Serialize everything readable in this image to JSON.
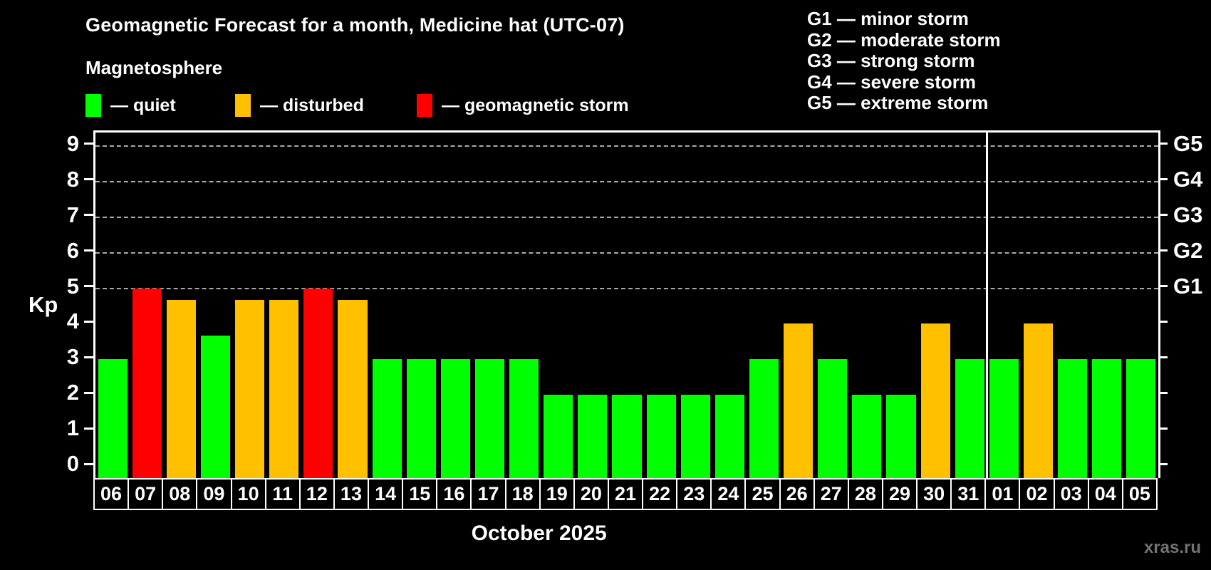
{
  "header": {
    "title": "Geomagnetic Forecast for a month, Medicine hat (UTC-07)",
    "subtitle": "Magnetosphere"
  },
  "status_legend": [
    {
      "key": "quiet",
      "label": "— quiet",
      "color": "#00ff00"
    },
    {
      "key": "disturbed",
      "label": "— disturbed",
      "color": "#ffc000"
    },
    {
      "key": "storm",
      "label": "— geomagnetic storm",
      "color": "#ff0000"
    }
  ],
  "g_scale_legend": [
    "G1 — minor storm",
    "G2 — moderate storm",
    "G3 — strong storm",
    "G4 — severe storm",
    "G5 — extreme storm"
  ],
  "watermark": "xras.ru",
  "chart_data": {
    "type": "bar",
    "title": "Geomagnetic Forecast for a month, Medicine hat (UTC-07)",
    "subtitle": "Magnetosphere",
    "xlabel": "October 2025",
    "ylabel_left": "Kp",
    "ylim": [
      0,
      9
    ],
    "yticks_left": [
      0,
      1,
      2,
      3,
      4,
      5,
      6,
      7,
      8,
      9
    ],
    "yticks_right": [
      {
        "value": 5,
        "label": "G1"
      },
      {
        "value": 6,
        "label": "G2"
      },
      {
        "value": 7,
        "label": "G3"
      },
      {
        "value": 8,
        "label": "G4"
      },
      {
        "value": 9,
        "label": "G5"
      }
    ],
    "gridlines_at": [
      5,
      6,
      7,
      8,
      9
    ],
    "grid_style": "dashed",
    "legend_position": "top",
    "categories": [
      "06",
      "07",
      "08",
      "09",
      "10",
      "11",
      "12",
      "13",
      "14",
      "15",
      "16",
      "17",
      "18",
      "19",
      "20",
      "21",
      "22",
      "23",
      "24",
      "25",
      "26",
      "27",
      "28",
      "29",
      "30",
      "31",
      "01",
      "02",
      "03",
      "04",
      "05"
    ],
    "values": [
      3,
      5,
      4.67,
      3.67,
      4.67,
      4.67,
      5,
      4.67,
      3,
      3,
      3,
      3,
      3,
      2,
      2,
      2,
      2,
      2,
      2,
      3,
      4,
      3,
      2,
      2,
      4,
      3,
      3,
      4,
      3,
      3,
      3
    ],
    "statuses": [
      "quiet",
      "storm",
      "disturbed",
      "quiet",
      "disturbed",
      "disturbed",
      "storm",
      "disturbed",
      "quiet",
      "quiet",
      "quiet",
      "quiet",
      "quiet",
      "quiet",
      "quiet",
      "quiet",
      "quiet",
      "quiet",
      "quiet",
      "quiet",
      "disturbed",
      "quiet",
      "quiet",
      "quiet",
      "disturbed",
      "quiet",
      "quiet",
      "disturbed",
      "quiet",
      "quiet",
      "quiet"
    ],
    "colors": {
      "quiet": "#00ff00",
      "disturbed": "#ffc000",
      "storm": "#ff0000"
    },
    "month_separator_after_index": 25,
    "month_label_span_days": 26
  }
}
